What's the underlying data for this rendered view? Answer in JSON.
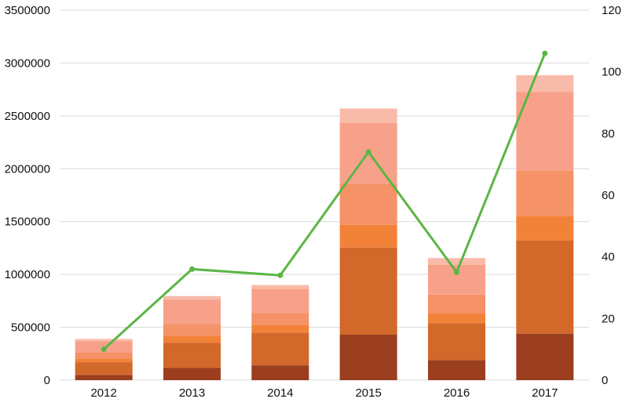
{
  "chart_data": {
    "type": "bar",
    "stacked": true,
    "categories": [
      "2012",
      "2013",
      "2014",
      "2015",
      "2016",
      "2017"
    ],
    "series": [
      {
        "values": [
          50000,
          115000,
          140000,
          430000,
          190000,
          440000
        ],
        "color": "#9A3E1F"
      },
      {
        "values": [
          120000,
          240000,
          310000,
          825000,
          350000,
          880000
        ],
        "color": "#D3682B"
      },
      {
        "values": [
          35000,
          65000,
          75000,
          215000,
          90000,
          235000
        ],
        "color": "#F38239"
      },
      {
        "values": [
          60000,
          110000,
          110000,
          390000,
          180000,
          430000
        ],
        "color": "#F59267"
      },
      {
        "values": [
          105000,
          230000,
          230000,
          575000,
          280000,
          740000
        ],
        "color": "#F8A18A"
      },
      {
        "values": [
          20000,
          35000,
          35000,
          135000,
          65000,
          160000
        ],
        "color": "#F9BBA9"
      }
    ],
    "line_series": {
      "axis": "right",
      "values": [
        10,
        36,
        34,
        74,
        35,
        106
      ],
      "color": "#5AB645"
    },
    "y_left": {
      "ylim": [
        0,
        3500000
      ],
      "ticks": [
        "0",
        "500000",
        "1000000",
        "1500000",
        "2000000",
        "2500000",
        "3000000",
        "3500000"
      ]
    },
    "y_right": {
      "ylim": [
        0,
        120
      ],
      "ticks": [
        "0",
        "20",
        "40",
        "60",
        "80",
        "100",
        "120"
      ]
    },
    "grid": true,
    "legend": "none",
    "title": "",
    "xlabel": "",
    "ylabel": ""
  }
}
